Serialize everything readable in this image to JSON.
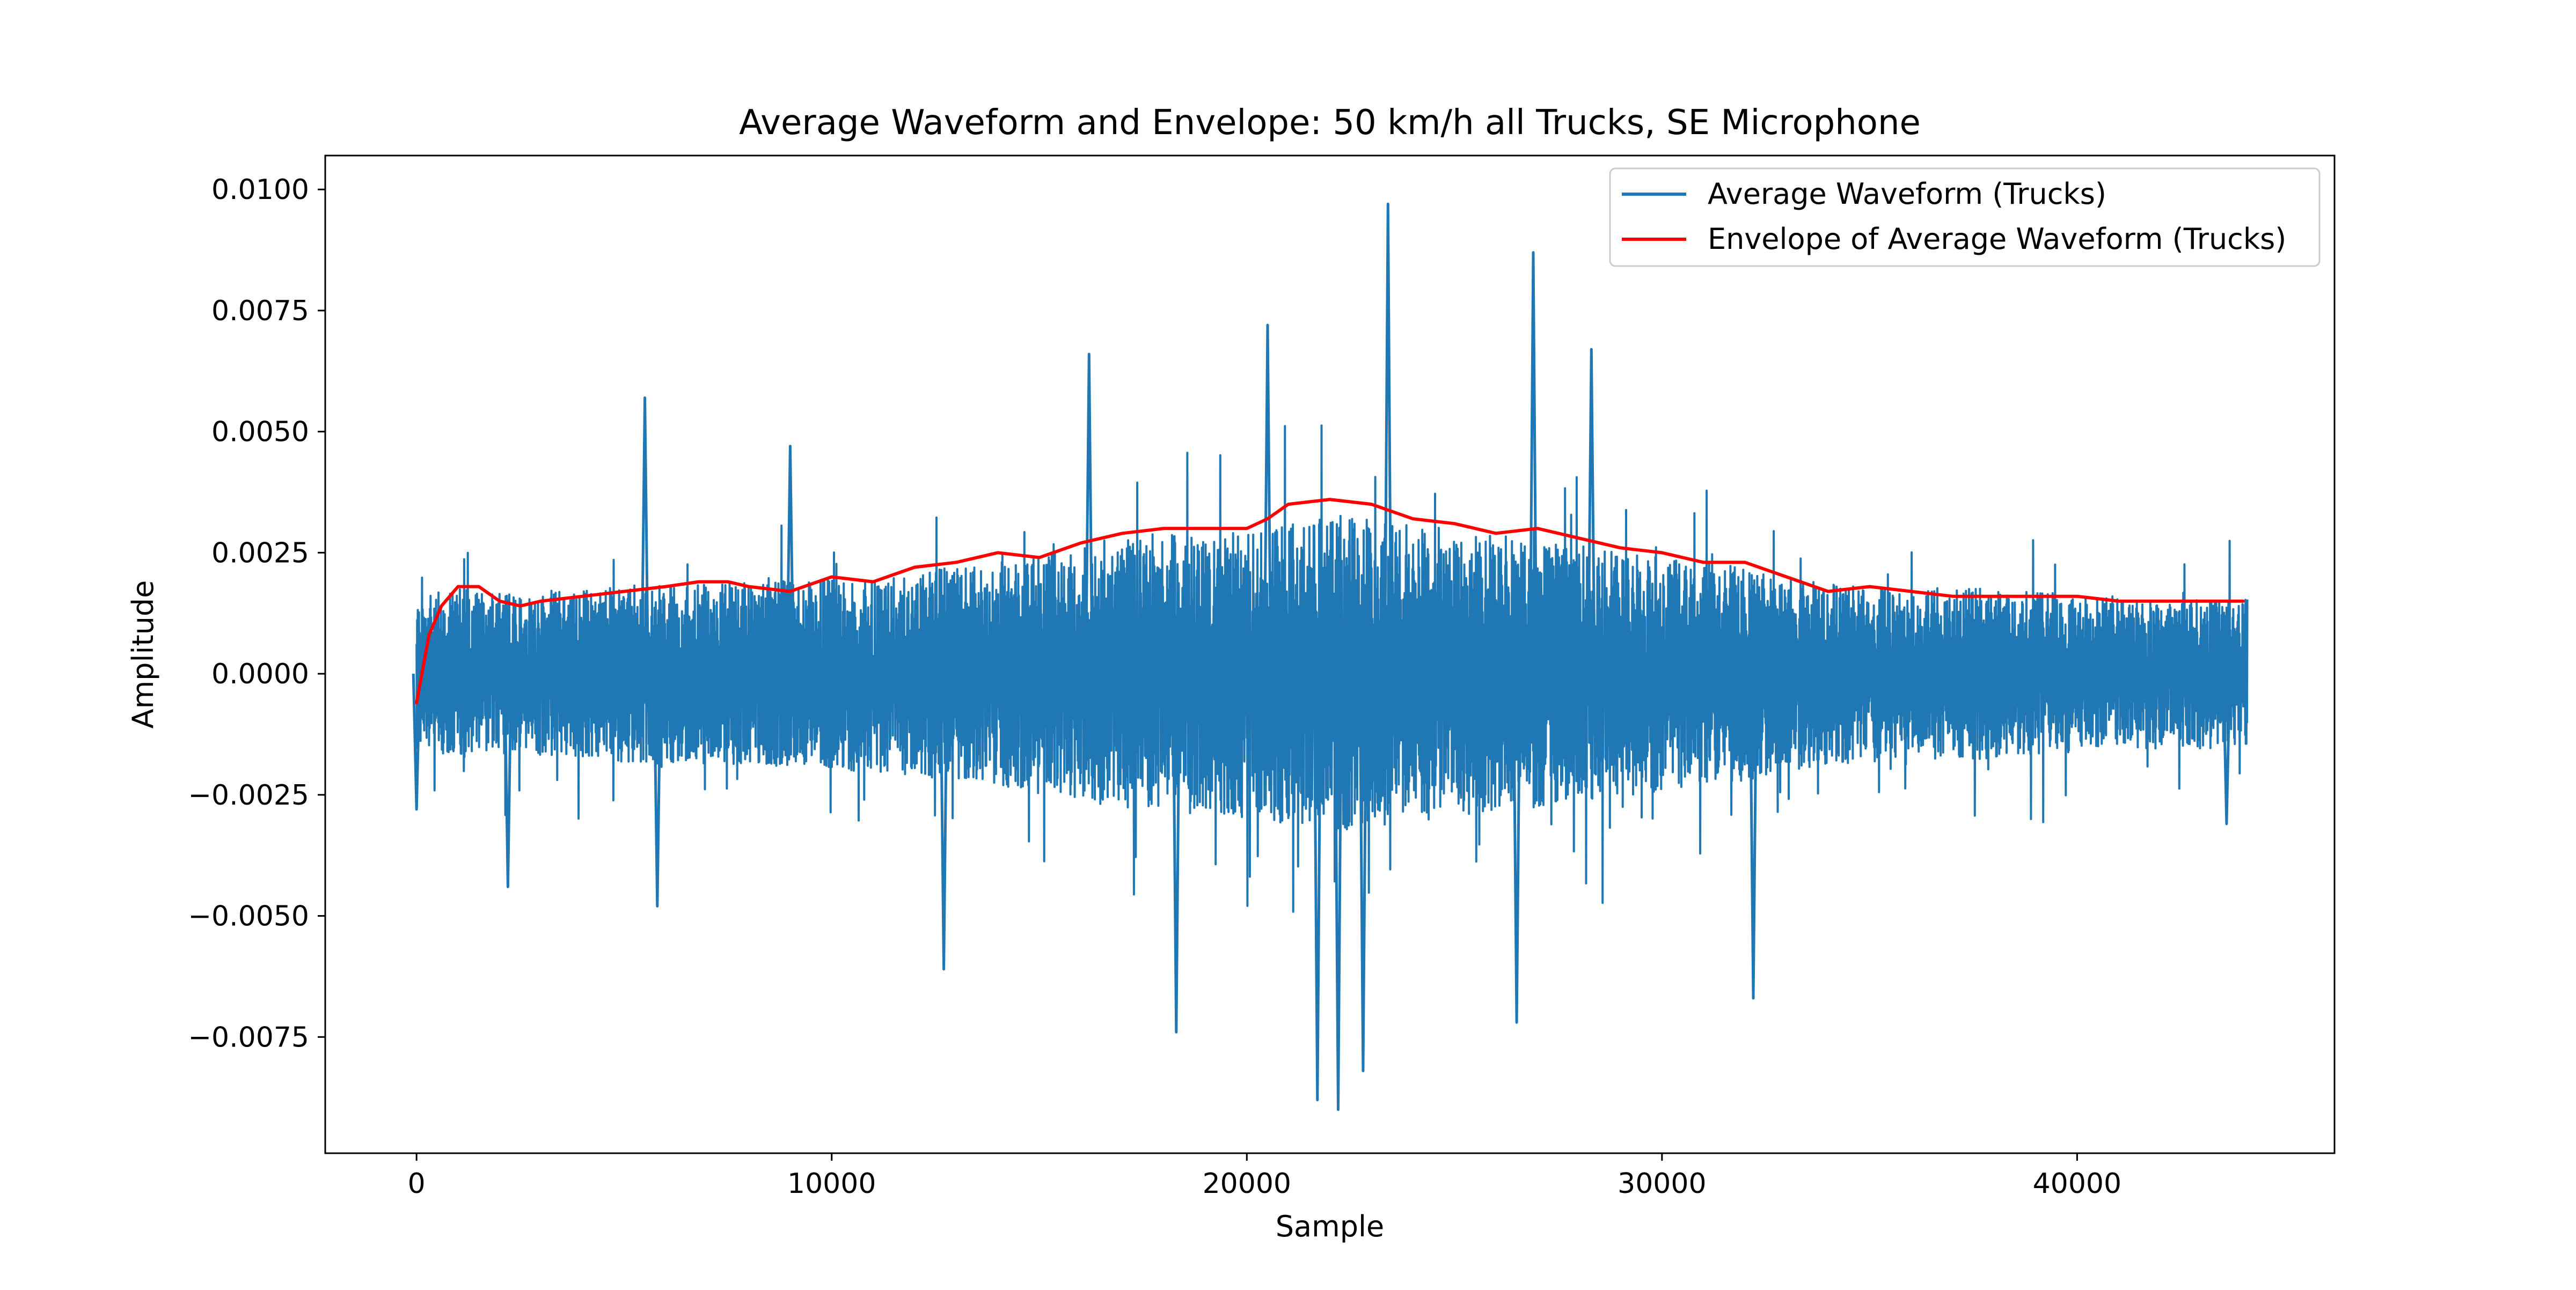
{
  "chart_data": {
    "type": "line",
    "title": "Average Waveform and Envelope: 50 km/h all Trucks, SE Microphone",
    "xlabel": "Sample",
    "ylabel": "Amplitude",
    "xlim": [
      -2200,
      46200
    ],
    "ylim": [
      -0.0099,
      0.0107
    ],
    "xticks": [
      {
        "value": 0,
        "label": "0"
      },
      {
        "value": 10000,
        "label": "10000"
      },
      {
        "value": 20000,
        "label": "20000"
      },
      {
        "value": 30000,
        "label": "30000"
      },
      {
        "value": 40000,
        "label": "40000"
      }
    ],
    "yticks": [
      {
        "value": 0.01,
        "label": "0.0100"
      },
      {
        "value": 0.0075,
        "label": "0.0075"
      },
      {
        "value": 0.005,
        "label": "0.0050"
      },
      {
        "value": 0.0025,
        "label": "0.0025"
      },
      {
        "value": 0.0,
        "label": "0.0000"
      },
      {
        "value": -0.0025,
        "label": "−0.0025"
      },
      {
        "value": -0.005,
        "label": "−0.0050"
      },
      {
        "value": -0.0075,
        "label": "−0.0075"
      }
    ],
    "grid": false,
    "legend_position": "top-right",
    "series": [
      {
        "name": "Average Waveform (Trucks)",
        "color": "#1f77b4",
        "kind": "waveform",
        "x_range": [
          0,
          44100
        ],
        "amplitude_profile": {
          "x": [
            0,
            1000,
            2000,
            4000,
            6000,
            8000,
            10000,
            12000,
            14000,
            16000,
            18000,
            20000,
            22000,
            24000,
            26000,
            28000,
            30000,
            32000,
            34000,
            36000,
            38000,
            40000,
            42000,
            44100
          ],
          "typical_half_width": [
            0.0014,
            0.0016,
            0.0015,
            0.0016,
            0.0017,
            0.0017,
            0.0018,
            0.0019,
            0.0021,
            0.0024,
            0.0026,
            0.0027,
            0.003,
            0.0028,
            0.0026,
            0.0024,
            0.0022,
            0.002,
            0.0017,
            0.0016,
            0.0016,
            0.0015,
            0.0014,
            0.0014
          ]
        },
        "peaks": [
          {
            "x": 5500,
            "y": 0.0057
          },
          {
            "x": 9000,
            "y": 0.0047
          },
          {
            "x": 16200,
            "y": 0.0066
          },
          {
            "x": 20500,
            "y": 0.0072
          },
          {
            "x": 23400,
            "y": 0.0097
          },
          {
            "x": 26900,
            "y": 0.0087
          },
          {
            "x": 28300,
            "y": 0.0067
          },
          {
            "x": 21700,
            "y": -0.0088
          },
          {
            "x": 22200,
            "y": -0.009
          },
          {
            "x": 22800,
            "y": -0.0082
          },
          {
            "x": 18300,
            "y": -0.0074
          },
          {
            "x": 26500,
            "y": -0.0072
          },
          {
            "x": 32200,
            "y": -0.0067
          },
          {
            "x": 12700,
            "y": -0.0061
          },
          {
            "x": 5800,
            "y": -0.0048
          },
          {
            "x": 2200,
            "y": -0.0044
          },
          {
            "x": 43600,
            "y": -0.0031
          },
          {
            "x": 0,
            "y": -0.0028
          }
        ]
      },
      {
        "name": "Envelope of Average Waveform (Trucks)",
        "color": "#ff0000",
        "kind": "line",
        "x": [
          0,
          300,
          600,
          1000,
          1500,
          2000,
          2500,
          3000,
          4000,
          5000,
          6000,
          6800,
          7500,
          8000,
          9000,
          10000,
          11000,
          12000,
          13000,
          14000,
          15000,
          16000,
          17000,
          18000,
          19000,
          20000,
          20500,
          21000,
          22000,
          23000,
          24000,
          25000,
          26000,
          27000,
          28000,
          29000,
          30000,
          31000,
          32000,
          33000,
          34000,
          35000,
          36000,
          37000,
          38000,
          39000,
          40000,
          41000,
          42000,
          43000,
          44000
        ],
        "y": [
          -0.0006,
          0.0008,
          0.0014,
          0.0018,
          0.0018,
          0.0015,
          0.0014,
          0.0015,
          0.0016,
          0.0017,
          0.0018,
          0.0019,
          0.0019,
          0.0018,
          0.0017,
          0.002,
          0.0019,
          0.0022,
          0.0023,
          0.0025,
          0.0024,
          0.0027,
          0.0029,
          0.003,
          0.003,
          0.003,
          0.0032,
          0.0035,
          0.0036,
          0.0035,
          0.0032,
          0.0031,
          0.0029,
          0.003,
          0.0028,
          0.0026,
          0.0025,
          0.0023,
          0.0023,
          0.002,
          0.0017,
          0.0018,
          0.0017,
          0.0016,
          0.0016,
          0.0016,
          0.0016,
          0.0015,
          0.0015,
          0.0015,
          0.0015
        ]
      }
    ]
  }
}
